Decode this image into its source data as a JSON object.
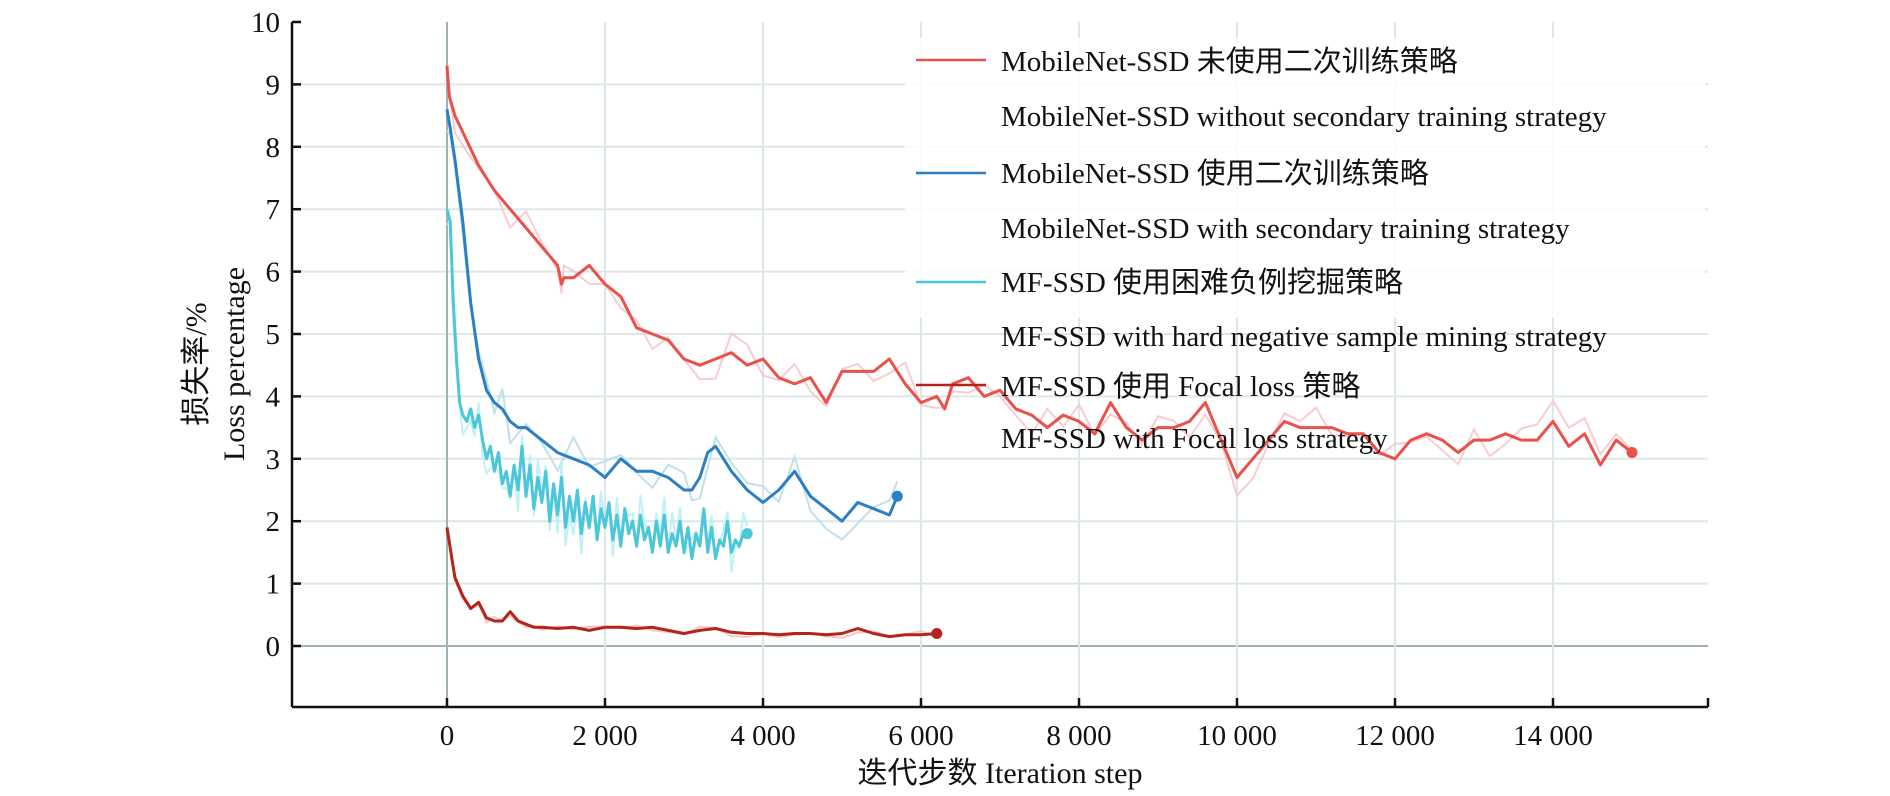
{
  "chart_data": {
    "type": "line",
    "title": "",
    "xlabel": "迭代步数 Iteration step",
    "ylabel_line1": "损失率/%",
    "ylabel_line2": "Loss percentage",
    "xlim": [
      -2000,
      16000
    ],
    "ylim": [
      -1,
      10
    ],
    "xticks": [
      0,
      2000,
      4000,
      6000,
      8000,
      10000,
      12000,
      14000
    ],
    "xtick_labels": [
      "0",
      "2 000",
      "4 000",
      "6 000",
      "8 000",
      "10 000",
      "12 000",
      "14 000"
    ],
    "yticks": [
      0,
      1,
      2,
      3,
      4,
      5,
      6,
      7,
      8,
      9,
      10
    ],
    "ytick_labels": [
      "0",
      "1",
      "2",
      "3",
      "4",
      "5",
      "6",
      "7",
      "8",
      "9",
      "10"
    ],
    "grid": true,
    "legend_position": "top-right",
    "series": [
      {
        "name": "MobileNet-SSD 未使用二次训练策略",
        "name_en": "MobileNet-SSD without secondary training strategy",
        "color": "#e8524a",
        "raw_color": "#f7c6cc",
        "x": [
          0,
          30,
          100,
          250,
          400,
          600,
          800,
          1000,
          1200,
          1400,
          1450,
          1480,
          1600,
          1800,
          2000,
          2200,
          2400,
          2600,
          2800,
          3000,
          3200,
          3400,
          3600,
          3800,
          4000,
          4200,
          4400,
          4600,
          4800,
          5000,
          5200,
          5400,
          5600,
          5800,
          6000,
          6200,
          6300,
          6400,
          6600,
          6800,
          7000,
          7200,
          7400,
          7600,
          7800,
          8000,
          8200,
          8400,
          8600,
          8800,
          9000,
          9200,
          9400,
          9600,
          9800,
          10000,
          10200,
          10400,
          10600,
          10800,
          11000,
          11200,
          11400,
          11600,
          11800,
          12000,
          12200,
          12400,
          12600,
          12800,
          13000,
          13200,
          13400,
          13600,
          13800,
          14000,
          14200,
          14400,
          14600,
          14800,
          15000
        ],
        "y": [
          9.3,
          8.8,
          8.5,
          8.1,
          7.7,
          7.3,
          7.0,
          6.7,
          6.4,
          6.1,
          5.8,
          5.9,
          5.9,
          6.1,
          5.8,
          5.6,
          5.1,
          5.0,
          4.9,
          4.6,
          4.5,
          4.6,
          4.7,
          4.5,
          4.6,
          4.3,
          4.2,
          4.3,
          3.9,
          4.4,
          4.4,
          4.4,
          4.6,
          4.2,
          3.9,
          4.0,
          3.8,
          4.2,
          4.3,
          4.0,
          4.1,
          3.8,
          3.7,
          3.5,
          3.7,
          3.6,
          3.4,
          3.9,
          3.5,
          3.3,
          3.5,
          3.5,
          3.6,
          3.9,
          3.3,
          2.7,
          3.0,
          3.3,
          3.6,
          3.5,
          3.5,
          3.5,
          3.4,
          3.4,
          3.1,
          3.0,
          3.3,
          3.4,
          3.3,
          3.1,
          3.3,
          3.3,
          3.4,
          3.3,
          3.3,
          3.6,
          3.2,
          3.4,
          2.9,
          3.3,
          3.1
        ],
        "end_marker": true
      },
      {
        "name": "MobileNet-SSD 使用二次训练策略",
        "name_en": "MobileNet-SSD with secondary training strategy",
        "color": "#2b7fc3",
        "raw_color": "#b9dde8",
        "x": [
          0,
          40,
          100,
          200,
          300,
          400,
          500,
          600,
          700,
          800,
          900,
          1000,
          1200,
          1400,
          1600,
          1800,
          2000,
          2200,
          2400,
          2600,
          2800,
          3000,
          3100,
          3200,
          3300,
          3400,
          3600,
          3800,
          4000,
          4200,
          4400,
          4600,
          4800,
          5000,
          5200,
          5400,
          5600,
          5700
        ],
        "y": [
          8.6,
          8.3,
          7.8,
          6.8,
          5.5,
          4.6,
          4.1,
          3.9,
          3.8,
          3.6,
          3.5,
          3.5,
          3.3,
          3.1,
          3.0,
          2.9,
          2.7,
          3.0,
          2.8,
          2.8,
          2.7,
          2.5,
          2.5,
          2.7,
          3.1,
          3.2,
          2.8,
          2.5,
          2.3,
          2.5,
          2.8,
          2.4,
          2.2,
          2.0,
          2.3,
          2.2,
          2.1,
          2.4
        ],
        "end_marker": true
      },
      {
        "name": "MF-SSD 使用困难负例挖掘策略",
        "name_en": "MF-SSD with hard negative sample mining strategy",
        "color": "#4cc6d9",
        "raw_color": "#b8f0f4",
        "x": [
          0,
          40,
          80,
          120,
          160,
          200,
          250,
          300,
          350,
          400,
          450,
          500,
          550,
          600,
          650,
          700,
          750,
          800,
          850,
          900,
          950,
          1000,
          1050,
          1100,
          1150,
          1200,
          1250,
          1300,
          1350,
          1400,
          1450,
          1500,
          1550,
          1600,
          1650,
          1700,
          1750,
          1800,
          1850,
          1900,
          1950,
          2000,
          2050,
          2100,
          2150,
          2200,
          2250,
          2300,
          2350,
          2400,
          2450,
          2500,
          2550,
          2600,
          2650,
          2700,
          2750,
          2800,
          2850,
          2900,
          2950,
          3000,
          3050,
          3100,
          3150,
          3200,
          3250,
          3300,
          3350,
          3400,
          3450,
          3500,
          3550,
          3600,
          3650,
          3700,
          3750,
          3800
        ],
        "y": [
          7.0,
          6.8,
          5.5,
          4.6,
          3.9,
          3.7,
          3.6,
          3.8,
          3.5,
          3.7,
          3.3,
          3.0,
          3.2,
          2.8,
          3.1,
          2.6,
          2.8,
          2.4,
          2.9,
          2.5,
          3.2,
          2.4,
          2.9,
          2.2,
          2.7,
          2.3,
          2.8,
          2.0,
          2.6,
          2.1,
          2.7,
          1.9,
          2.4,
          2.0,
          2.5,
          1.8,
          2.3,
          1.9,
          2.4,
          1.7,
          2.2,
          1.9,
          2.3,
          1.7,
          2.1,
          1.6,
          2.2,
          1.8,
          2.0,
          1.6,
          2.1,
          1.7,
          1.9,
          1.5,
          2.0,
          1.6,
          2.1,
          1.5,
          1.8,
          1.6,
          2.0,
          1.5,
          1.9,
          1.4,
          1.8,
          1.6,
          2.2,
          1.5,
          1.9,
          1.4,
          1.7,
          1.6,
          2.0,
          1.5,
          1.7,
          1.6,
          1.8,
          1.8
        ],
        "end_marker": true
      },
      {
        "name": "MF-SSD 使用 Focal loss 策略",
        "name_en": "MF-SSD with Focal loss strategy",
        "color": "#b5241c",
        "raw_color": "#f4c2c4",
        "x": [
          0,
          50,
          100,
          200,
          300,
          400,
          500,
          600,
          700,
          800,
          900,
          1000,
          1100,
          1200,
          1400,
          1600,
          1800,
          2000,
          2200,
          2400,
          2600,
          2800,
          3000,
          3200,
          3400,
          3600,
          3800,
          4000,
          4200,
          4400,
          4600,
          4800,
          5000,
          5200,
          5400,
          5600,
          5800,
          6000,
          6200
        ],
        "y": [
          1.9,
          1.5,
          1.1,
          0.8,
          0.6,
          0.7,
          0.45,
          0.4,
          0.4,
          0.55,
          0.4,
          0.35,
          0.3,
          0.3,
          0.28,
          0.3,
          0.25,
          0.3,
          0.3,
          0.28,
          0.3,
          0.25,
          0.2,
          0.25,
          0.28,
          0.22,
          0.2,
          0.2,
          0.18,
          0.2,
          0.2,
          0.18,
          0.2,
          0.28,
          0.2,
          0.15,
          0.18,
          0.18,
          0.2
        ],
        "end_marker": true
      }
    ]
  }
}
